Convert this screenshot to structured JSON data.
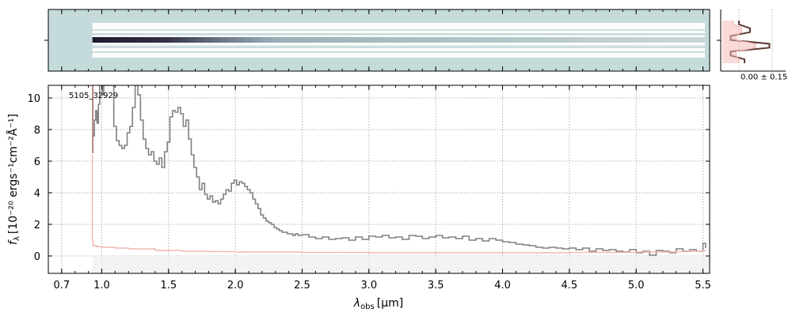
{
  "chart_data": [
    {
      "type": "heatmap",
      "panel": "2d-spectrum",
      "background_color": "#c5dadb",
      "trace_color": "#1c1a2e"
    },
    {
      "type": "line",
      "panel": "1d-spectrum",
      "label": "5105_32929",
      "xlabel_main": "λ",
      "xlabel_sub": "obs",
      "xlabel_unit": "[μm]",
      "ylabel_main": "f",
      "ylabel_sub": "λ",
      "ylabel_unit": "[10⁻²⁰ ergs⁻¹cm⁻²Å⁻¹]",
      "x_ticks": [
        "0.7",
        "1.0",
        "1.5",
        "2.0",
        "2.5",
        "3.0",
        "3.5",
        "4.0",
        "4.5",
        "5.0",
        "5.5"
      ],
      "x_tick_values": [
        0.7,
        1.0,
        1.5,
        2.0,
        2.5,
        3.0,
        3.5,
        4.0,
        4.5,
        5.0,
        5.5
      ],
      "y_ticks": [
        "0",
        "2",
        "4",
        "6",
        "8",
        "10"
      ],
      "y_tick_values": [
        0,
        2,
        4,
        6,
        8,
        10
      ],
      "ylim": [
        -1.1,
        10.8
      ],
      "xlim": [
        0.6,
        5.55
      ],
      "grid": true,
      "series": [
        {
          "color": "#808080",
          "x": [
            0.935,
            0.945,
            0.955,
            0.965,
            0.975,
            0.985,
            0.995,
            1.005,
            1.015,
            1.03,
            1.05,
            1.07,
            1.09,
            1.11,
            1.13,
            1.15,
            1.17,
            1.19,
            1.21,
            1.23,
            1.25,
            1.27,
            1.29,
            1.31,
            1.33,
            1.35,
            1.37,
            1.39,
            1.41,
            1.43,
            1.45,
            1.47,
            1.49,
            1.51,
            1.53,
            1.55,
            1.57,
            1.59,
            1.61,
            1.63,
            1.65,
            1.67,
            1.69,
            1.71,
            1.73,
            1.75,
            1.77,
            1.79,
            1.81,
            1.83,
            1.85,
            1.87,
            1.89,
            1.91,
            1.93,
            1.95,
            1.97,
            1.99,
            2.01,
            2.03,
            2.05,
            2.07,
            2.09,
            2.11,
            2.13,
            2.15,
            2.17,
            2.19,
            2.21,
            2.23,
            2.25,
            2.27,
            2.29,
            2.31,
            2.33,
            2.35,
            2.37,
            2.39,
            2.41,
            2.43,
            2.45,
            2.47,
            2.5,
            2.55,
            2.6,
            2.65,
            2.7,
            2.75,
            2.8,
            2.85,
            2.9,
            2.95,
            3.0,
            3.05,
            3.1,
            3.15,
            3.2,
            3.25,
            3.3,
            3.35,
            3.4,
            3.45,
            3.5,
            3.55,
            3.6,
            3.65,
            3.7,
            3.75,
            3.8,
            3.85,
            3.9,
            3.95,
            4.0,
            4.05,
            4.1,
            4.15,
            4.2,
            4.25,
            4.3,
            4.35,
            4.4,
            4.45,
            4.5,
            4.55,
            4.6,
            4.65,
            4.7,
            4.75,
            4.8,
            4.85,
            4.9,
            4.95,
            5.0,
            5.05,
            5.1,
            5.15,
            5.2,
            5.25,
            5.3,
            5.35,
            5.4,
            5.45,
            5.5,
            5.52
          ],
          "y": [
            7.6,
            8.6,
            9.2,
            8.4,
            9.6,
            10.8,
            10.8,
            10.2,
            10.8,
            10.8,
            10.8,
            10.8,
            8.2,
            7.3,
            7.0,
            6.8,
            7.0,
            7.8,
            8.2,
            9.4,
            10.8,
            10.2,
            8.6,
            7.4,
            6.8,
            6.4,
            6.6,
            6.0,
            5.8,
            6.2,
            5.6,
            6.6,
            7.2,
            8.8,
            9.2,
            9.1,
            9.4,
            9.0,
            8.2,
            8.6,
            7.4,
            6.4,
            5.6,
            5.0,
            4.2,
            4.6,
            3.9,
            3.6,
            3.8,
            3.4,
            3.5,
            3.3,
            3.6,
            3.9,
            4.2,
            4.1,
            4.6,
            4.8,
            4.5,
            4.7,
            4.6,
            4.4,
            4.2,
            4.0,
            3.6,
            3.3,
            3.0,
            2.6,
            2.4,
            2.2,
            2.1,
            2.0,
            1.8,
            1.7,
            1.6,
            1.5,
            1.5,
            1.4,
            1.4,
            1.3,
            1.4,
            1.3,
            1.35,
            1.2,
            1.1,
            1.2,
            1.05,
            1.1,
            1.15,
            1.0,
            1.2,
            1.05,
            1.25,
            1.2,
            1.3,
            1.15,
            1.2,
            1.05,
            1.3,
            1.25,
            1.1,
            1.2,
            1.3,
            1.15,
            1.2,
            1.1,
            1.25,
            1.0,
            1.1,
            0.95,
            1.1,
            1.0,
            0.9,
            0.85,
            0.75,
            0.7,
            0.65,
            0.55,
            0.5,
            0.55,
            0.5,
            0.45,
            0.5,
            0.4,
            0.5,
            0.3,
            0.45,
            0.35,
            0.4,
            0.3,
            0.25,
            0.4,
            0.2,
            0.3,
            0.05,
            0.35,
            0.3,
            0.2,
            0.45,
            0.3,
            0.4,
            0.3,
            0.8,
            0.5
          ]
        },
        {
          "color": "#f4b6b4",
          "x": [
            0.93,
            0.93,
            0.935,
            0.94,
            0.96,
            1.0,
            1.1,
            1.2,
            1.4,
            1.6,
            1.8,
            2.0,
            2.5,
            3.0,
            3.5,
            4.0,
            4.5,
            5.0,
            5.3,
            5.4,
            5.5,
            5.52
          ],
          "y": [
            6.4,
            1.0,
            0.7,
            0.65,
            0.6,
            0.55,
            0.5,
            0.45,
            0.35,
            0.3,
            0.28,
            0.25,
            0.22,
            0.2,
            0.2,
            0.2,
            0.22,
            0.25,
            0.28,
            0.3,
            0.35,
            0.4
          ]
        }
      ],
      "error_band": {
        "color": "#eeeeee",
        "y_low": -1.1,
        "y_high": 0.0,
        "x_start": 0.93
      }
    },
    {
      "type": "line",
      "panel": "cross-dispersion-profile",
      "label": "0.00 ± 0.15",
      "series": [
        {
          "color": "#5a3a32",
          "values": [
            0.3,
            0.3,
            0.5,
            0.5,
            0.15,
            0.15,
            0.85,
            0.85,
            0.15,
            0.15,
            0.4,
            0.4
          ]
        },
        {
          "color": "#f4b6b4",
          "values": [
            0.2,
            0.2,
            0.35,
            0.35,
            0.25,
            0.25,
            0.6,
            0.6,
            0.25,
            0.25,
            0.3,
            0.3
          ]
        }
      ]
    }
  ]
}
